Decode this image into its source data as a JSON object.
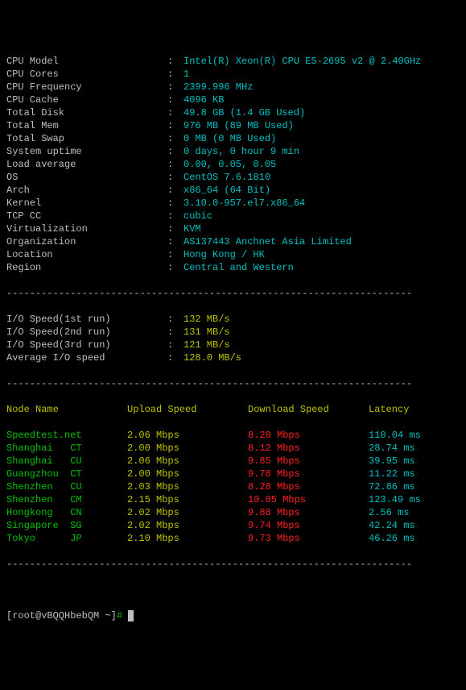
{
  "dashes": "----------------------------------------------------------------------",
  "sysinfo": [
    {
      "label": "CPU Model",
      "value": "Intel(R) Xeon(R) CPU E5-2695 v2 @ 2.40GHz"
    },
    {
      "label": "CPU Cores",
      "value": "1"
    },
    {
      "label": "CPU Frequency",
      "value": "2399.996 MHz"
    },
    {
      "label": "CPU Cache",
      "value": "4096 KB"
    },
    {
      "label": "Total Disk",
      "value": "49.8 GB (1.4 GB Used)"
    },
    {
      "label": "Total Mem",
      "value": "976 MB (89 MB Used)"
    },
    {
      "label": "Total Swap",
      "value": "0 MB (0 MB Used)"
    },
    {
      "label": "System uptime",
      "value": "0 days, 0 hour 9 min"
    },
    {
      "label": "Load average",
      "value": "0.00, 0.05, 0.05"
    },
    {
      "label": "OS",
      "value": "CentOS 7.6.1810"
    },
    {
      "label": "Arch",
      "value": "x86_64 (64 Bit)"
    },
    {
      "label": "Kernel",
      "value": "3.10.0-957.el7.x86_64"
    },
    {
      "label": "TCP CC",
      "value": "cubic"
    },
    {
      "label": "Virtualization",
      "value": "KVM"
    },
    {
      "label": "Organization",
      "value": "AS137443 Anchnet Asia Limited"
    },
    {
      "label": "Location",
      "value": "Hong Kong / HK"
    },
    {
      "label": "Region",
      "value": "Central and Western"
    }
  ],
  "io": [
    {
      "label": "I/O Speed(1st run)",
      "value": "132 MB/s",
      "style": "yellow"
    },
    {
      "label": "I/O Speed(2nd run)",
      "value": "131 MB/s",
      "style": "yellow"
    },
    {
      "label": "I/O Speed(3rd run)",
      "value": "121 MB/s",
      "style": "yellow"
    },
    {
      "label": "Average I/O speed",
      "value": "128.0 MB/s",
      "style": "yellow"
    }
  ],
  "table": {
    "headers": {
      "node": "Node Name",
      "upload": "Upload Speed",
      "download": "Download Speed",
      "latency": "Latency"
    },
    "rows": [
      {
        "node": "Speedtest.net   ",
        "upload": "2.06 Mbps",
        "download": "8.20 Mbps",
        "latency": "110.04 ms"
      },
      {
        "node": "Shanghai   CT   ",
        "upload": "2.00 Mbps",
        "download": "8.12 Mbps",
        "latency": "28.74 ms"
      },
      {
        "node": "Shanghai   CU   ",
        "upload": "2.06 Mbps",
        "download": "9.85 Mbps",
        "latency": "39.95 ms"
      },
      {
        "node": "Guangzhou  CT   ",
        "upload": "2.00 Mbps",
        "download": "9.78 Mbps",
        "latency": "11.22 ms"
      },
      {
        "node": "Shenzhen   CU   ",
        "upload": "2.03 Mbps",
        "download": "8.28 Mbps",
        "latency": "72.86 ms"
      },
      {
        "node": "Shenzhen   CM   ",
        "upload": "2.15 Mbps",
        "download": "10.05 Mbps",
        "latency": "123.49 ms"
      },
      {
        "node": "Hongkong   CN   ",
        "upload": "2.02 Mbps",
        "download": "9.88 Mbps",
        "latency": "2.56 ms"
      },
      {
        "node": "Singapore  SG   ",
        "upload": "2.02 Mbps",
        "download": "9.74 Mbps",
        "latency": "42.24 ms"
      },
      {
        "node": "Tokyo      JP   ",
        "upload": "2.10 Mbps",
        "download": "9.73 Mbps",
        "latency": "46.26 ms"
      }
    ]
  },
  "prompt": {
    "host": "[root@vBQQHbebQM ~]",
    "mark": "# "
  }
}
